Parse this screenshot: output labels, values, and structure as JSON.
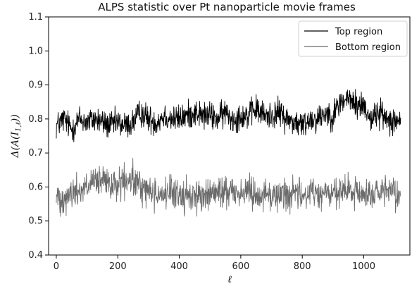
{
  "chart_data": {
    "type": "line",
    "title": "ALPS statistic over Pt nanoparticle movie frames",
    "xlabel": "ℓ",
    "ylabel": "Δ(A(I1,ℓ))",
    "ylabel_parts": {
      "delta": "Δ(A(I",
      "sub": "1,ℓ",
      "close": "))"
    },
    "xlim": [
      -25,
      1150
    ],
    "ylim": [
      0.4,
      1.1
    ],
    "xticks": [
      0,
      200,
      400,
      600,
      800,
      1000
    ],
    "xtick_labels": [
      "0",
      "200",
      "400",
      "600",
      "800",
      "1000"
    ],
    "yticks": [
      0.4,
      0.5,
      0.6,
      0.7,
      0.8,
      0.9,
      1.0,
      1.1
    ],
    "ytick_labels": [
      "0.4",
      "0.5",
      "0.6",
      "0.7",
      "0.8",
      "0.9",
      "1.0",
      "1.1"
    ],
    "legend_position": "top-right",
    "grid": false,
    "series": [
      {
        "name": "Top region",
        "color": "#000000",
        "x": [
          0,
          25,
          50,
          75,
          100,
          125,
          150,
          175,
          200,
          225,
          250,
          275,
          300,
          325,
          350,
          375,
          400,
          425,
          450,
          475,
          500,
          525,
          550,
          575,
          600,
          625,
          650,
          675,
          700,
          725,
          750,
          775,
          800,
          825,
          850,
          875,
          900,
          925,
          950,
          975,
          1000,
          1025,
          1050,
          1075,
          1100,
          1120
        ],
        "values": [
          0.78,
          0.8,
          0.77,
          0.8,
          0.79,
          0.8,
          0.79,
          0.78,
          0.79,
          0.78,
          0.79,
          0.82,
          0.8,
          0.79,
          0.81,
          0.8,
          0.8,
          0.81,
          0.82,
          0.81,
          0.81,
          0.8,
          0.82,
          0.8,
          0.81,
          0.81,
          0.83,
          0.81,
          0.81,
          0.82,
          0.8,
          0.79,
          0.78,
          0.8,
          0.8,
          0.82,
          0.81,
          0.85,
          0.86,
          0.84,
          0.84,
          0.8,
          0.82,
          0.8,
          0.8,
          0.79
        ],
        "spread": 0.03,
        "samples": 1120
      },
      {
        "name": "Bottom region",
        "color": "#6b6b6b",
        "x": [
          0,
          25,
          50,
          75,
          100,
          125,
          150,
          175,
          200,
          225,
          250,
          275,
          300,
          325,
          350,
          375,
          400,
          425,
          450,
          475,
          500,
          525,
          550,
          575,
          600,
          625,
          650,
          675,
          700,
          725,
          750,
          775,
          800,
          825,
          850,
          875,
          900,
          925,
          950,
          975,
          1000,
          1025,
          1050,
          1075,
          1100,
          1120
        ],
        "values": [
          0.57,
          0.57,
          0.58,
          0.59,
          0.6,
          0.61,
          0.62,
          0.6,
          0.61,
          0.61,
          0.62,
          0.6,
          0.59,
          0.58,
          0.58,
          0.58,
          0.58,
          0.57,
          0.58,
          0.57,
          0.58,
          0.58,
          0.59,
          0.59,
          0.58,
          0.59,
          0.58,
          0.58,
          0.57,
          0.58,
          0.58,
          0.58,
          0.57,
          0.59,
          0.58,
          0.58,
          0.58,
          0.58,
          0.59,
          0.58,
          0.58,
          0.58,
          0.58,
          0.58,
          0.58,
          0.57
        ],
        "spread": 0.035,
        "samples": 1120
      }
    ]
  }
}
